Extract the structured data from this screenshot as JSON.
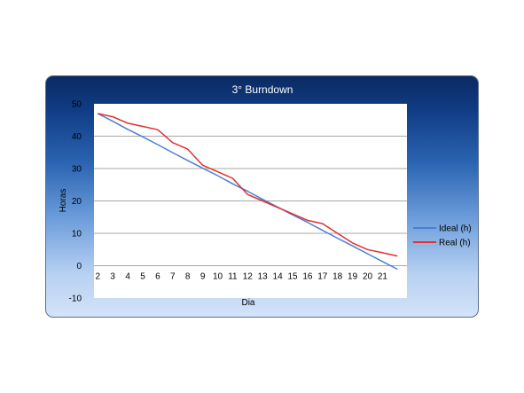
{
  "chart_data": {
    "type": "line",
    "title": "3° Burndown",
    "xlabel": "Dia",
    "ylabel": "Horas",
    "categories": [
      "2",
      "3",
      "4",
      "5",
      "6",
      "7",
      "8",
      "9",
      "10",
      "11",
      "12",
      "13",
      "14",
      "15",
      "16",
      "17",
      "18",
      "19",
      "20",
      "21"
    ],
    "ylim": [
      -10,
      50
    ],
    "yticks": [
      50,
      40,
      30,
      20,
      10,
      0,
      -10
    ],
    "grid": true,
    "legend_position": "right",
    "series": [
      {
        "name": "Ideal (h)",
        "color": "#4a7fd6",
        "x": [
          1,
          2,
          3,
          4,
          5,
          6,
          7,
          8,
          9,
          10,
          11,
          12,
          13,
          14,
          15,
          16,
          17,
          18,
          19,
          20,
          21
        ],
        "values": [
          47,
          44.6,
          42.1,
          39.8,
          37.4,
          34.9,
          32.5,
          30.1,
          27.8,
          25.3,
          23,
          20.5,
          18.1,
          15.7,
          13.4,
          10.9,
          8.5,
          6.1,
          3.7,
          1.3,
          -1.1
        ]
      },
      {
        "name": "Real (h)",
        "color": "#e03030",
        "x": [
          1,
          2,
          3,
          4,
          5,
          6,
          7,
          8,
          9,
          10,
          11,
          12,
          13,
          14,
          15,
          16,
          17,
          18,
          19,
          20,
          21
        ],
        "values": [
          47,
          46,
          44,
          43,
          42,
          38,
          36,
          31,
          29,
          27,
          22,
          20,
          18,
          16,
          14,
          13,
          10,
          7,
          5,
          4,
          3
        ]
      }
    ]
  }
}
